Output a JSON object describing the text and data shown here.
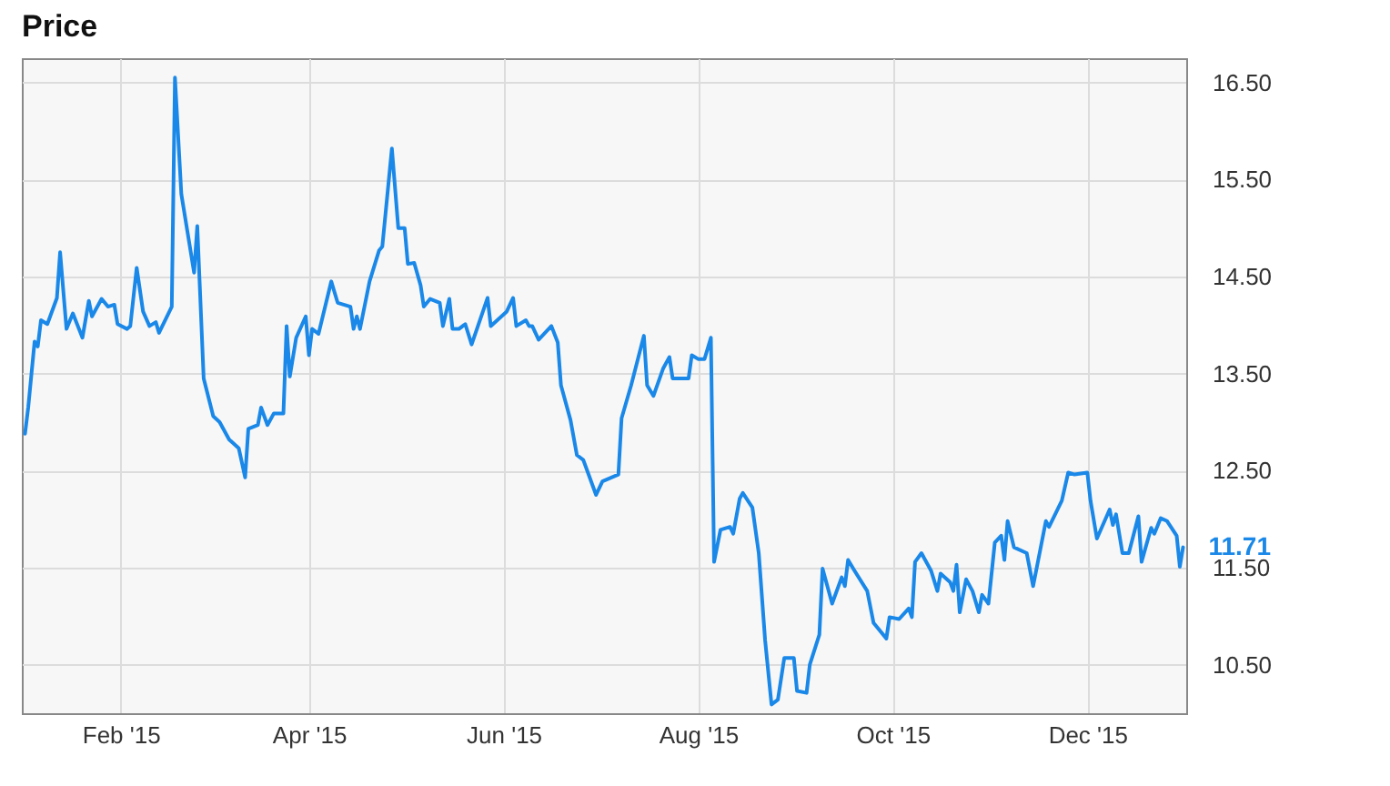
{
  "chart_data": {
    "type": "line",
    "title": "Price",
    "x": [
      "2015-01-02",
      "2015-01-03",
      "2015-01-05",
      "2015-01-06",
      "2015-01-07",
      "2015-01-09",
      "2015-01-12",
      "2015-01-13",
      "2015-01-15",
      "2015-01-17",
      "2015-01-20",
      "2015-01-22",
      "2015-01-23",
      "2015-01-26",
      "2015-01-28",
      "2015-01-30",
      "2015-01-31",
      "2015-02-03",
      "2015-02-04",
      "2015-02-06",
      "2015-02-08",
      "2015-02-10",
      "2015-02-12",
      "2015-02-13",
      "2015-02-17",
      "2015-02-18",
      "2015-02-20",
      "2015-02-24",
      "2015-02-25",
      "2015-02-27",
      "2015-03-02",
      "2015-03-04",
      "2015-03-07",
      "2015-03-10",
      "2015-03-12",
      "2015-03-13",
      "2015-03-16",
      "2015-03-17",
      "2015-03-19",
      "2015-03-21",
      "2015-03-24",
      "2015-03-25",
      "2015-03-26",
      "2015-03-28",
      "2015-03-31",
      "2015-04-01",
      "2015-04-02",
      "2015-04-04",
      "2015-04-08",
      "2015-04-10",
      "2015-04-14",
      "2015-04-15",
      "2015-04-16",
      "2015-04-17",
      "2015-04-20",
      "2015-04-23",
      "2015-04-24",
      "2015-04-27",
      "2015-04-29",
      "2015-05-01",
      "2015-05-02",
      "2015-05-04",
      "2015-05-06",
      "2015-05-07",
      "2015-05-09",
      "2015-05-12",
      "2015-05-13",
      "2015-05-15",
      "2015-05-16",
      "2015-05-18",
      "2015-05-20",
      "2015-05-22",
      "2015-05-27",
      "2015-05-28",
      "2015-06-02",
      "2015-06-04",
      "2015-06-05",
      "2015-06-08",
      "2015-06-09",
      "2015-06-10",
      "2015-06-12",
      "2015-06-16",
      "2015-06-18",
      "2015-06-19",
      "2015-06-22",
      "2015-06-24",
      "2015-06-26",
      "2015-06-30",
      "2015-07-02",
      "2015-07-07",
      "2015-07-08",
      "2015-07-11",
      "2015-07-15",
      "2015-07-16",
      "2015-07-18",
      "2015-07-21",
      "2015-07-23",
      "2015-07-24",
      "2015-07-29",
      "2015-07-30",
      "2015-08-01",
      "2015-08-03",
      "2015-08-05",
      "2015-08-06",
      "2015-08-08",
      "2015-08-11",
      "2015-08-12",
      "2015-08-14",
      "2015-08-15",
      "2015-08-18",
      "2015-08-20",
      "2015-08-22",
      "2015-08-24",
      "2015-08-26",
      "2015-08-28",
      "2015-08-31",
      "2015-09-01",
      "2015-09-04",
      "2015-09-05",
      "2015-09-08",
      "2015-09-09",
      "2015-09-12",
      "2015-09-15",
      "2015-09-16",
      "2015-09-17",
      "2015-09-19",
      "2015-09-23",
      "2015-09-25",
      "2015-09-29",
      "2015-09-30",
      "2015-10-03",
      "2015-10-06",
      "2015-10-07",
      "2015-10-08",
      "2015-10-10",
      "2015-10-13",
      "2015-10-15",
      "2015-10-16",
      "2015-10-19",
      "2015-10-20",
      "2015-10-21",
      "2015-10-22",
      "2015-10-24",
      "2015-10-26",
      "2015-10-28",
      "2015-10-29",
      "2015-10-31",
      "2015-11-02",
      "2015-11-04",
      "2015-11-05",
      "2015-11-06",
      "2015-11-08",
      "2015-11-12",
      "2015-11-14",
      "2015-11-18",
      "2015-11-19",
      "2015-11-23",
      "2015-11-25",
      "2015-11-27",
      "2015-12-01",
      "2015-12-02",
      "2015-12-04",
      "2015-12-08",
      "2015-12-09",
      "2015-12-10",
      "2015-12-12",
      "2015-12-14",
      "2015-12-17",
      "2015-12-18",
      "2015-12-21",
      "2015-12-22",
      "2015-12-24",
      "2015-12-26",
      "2015-12-29",
      "2015-12-30",
      "2015-12-31"
    ],
    "series": [
      {
        "color": "#1a88e8",
        "values": [
          12.88,
          13.15,
          13.83,
          13.78,
          14.05,
          14.01,
          14.28,
          14.75,
          13.96,
          14.12,
          13.87,
          14.25,
          14.09,
          14.27,
          14.19,
          14.21,
          14.01,
          13.96,
          13.99,
          14.59,
          14.14,
          13.99,
          14.03,
          13.92,
          14.19,
          16.55,
          15.35,
          14.54,
          15.02,
          13.45,
          13.06,
          13.0,
          12.82,
          12.73,
          12.43,
          12.93,
          12.97,
          13.15,
          12.97,
          13.09,
          13.09,
          13.99,
          13.47,
          13.87,
          14.09,
          13.69,
          13.96,
          13.91,
          14.45,
          14.23,
          14.19,
          13.96,
          14.09,
          13.96,
          14.45,
          14.77,
          14.81,
          15.82,
          15.0,
          15.0,
          14.63,
          14.64,
          14.41,
          14.19,
          14.27,
          14.23,
          13.99,
          14.27,
          13.96,
          13.96,
          14.01,
          13.8,
          14.28,
          13.99,
          14.14,
          14.28,
          13.99,
          14.05,
          13.99,
          13.99,
          13.85,
          13.99,
          13.82,
          13.38,
          13.02,
          12.66,
          12.61,
          12.25,
          12.39,
          12.46,
          13.04,
          13.38,
          13.89,
          13.38,
          13.27,
          13.55,
          13.67,
          13.45,
          13.45,
          13.69,
          13.65,
          13.65,
          13.87,
          11.56,
          11.89,
          11.92,
          11.85,
          12.21,
          12.27,
          12.12,
          11.65,
          10.75,
          10.09,
          10.14,
          10.57,
          10.57,
          10.23,
          10.21,
          10.5,
          10.81,
          11.49,
          11.13,
          11.4,
          11.31,
          11.58,
          11.47,
          11.26,
          10.93,
          10.77,
          10.99,
          10.97,
          11.08,
          10.99,
          11.56,
          11.65,
          11.47,
          11.26,
          11.44,
          11.35,
          11.26,
          11.53,
          11.04,
          11.38,
          11.26,
          11.04,
          11.22,
          11.13,
          11.76,
          11.83,
          11.58,
          11.98,
          11.71,
          11.65,
          11.31,
          11.98,
          11.92,
          12.19,
          12.48,
          12.46,
          12.48,
          12.19,
          11.8,
          12.1,
          11.94,
          12.05,
          11.65,
          11.65,
          12.03,
          11.56,
          11.91,
          11.85,
          12.01,
          11.98,
          11.83,
          11.51,
          11.71
        ]
      }
    ],
    "xlim": [
      "2015-01-01",
      "2016-01-01"
    ],
    "xticks": [
      {
        "value": "2015-02-01",
        "label": "Feb '15"
      },
      {
        "value": "2015-04-01",
        "label": "Apr '15"
      },
      {
        "value": "2015-06-01",
        "label": "Jun '15"
      },
      {
        "value": "2015-08-01",
        "label": "Aug '15"
      },
      {
        "value": "2015-10-01",
        "label": "Oct '15"
      },
      {
        "value": "2015-12-01",
        "label": "Dec '15"
      }
    ],
    "ylim": [
      10.0,
      16.75
    ],
    "yticks": [
      {
        "value": 10.5,
        "label": "10.50"
      },
      {
        "value": 11.5,
        "label": "11.50"
      },
      {
        "value": 12.5,
        "label": "12.50"
      },
      {
        "value": 13.5,
        "label": "13.50"
      },
      {
        "value": 14.5,
        "label": "14.50"
      },
      {
        "value": 15.5,
        "label": "15.50"
      },
      {
        "value": 16.5,
        "label": "16.50"
      }
    ],
    "annotations": [
      {
        "text": "11.71",
        "x": "2015-12-31",
        "y": 11.71
      }
    ],
    "grid": true
  }
}
